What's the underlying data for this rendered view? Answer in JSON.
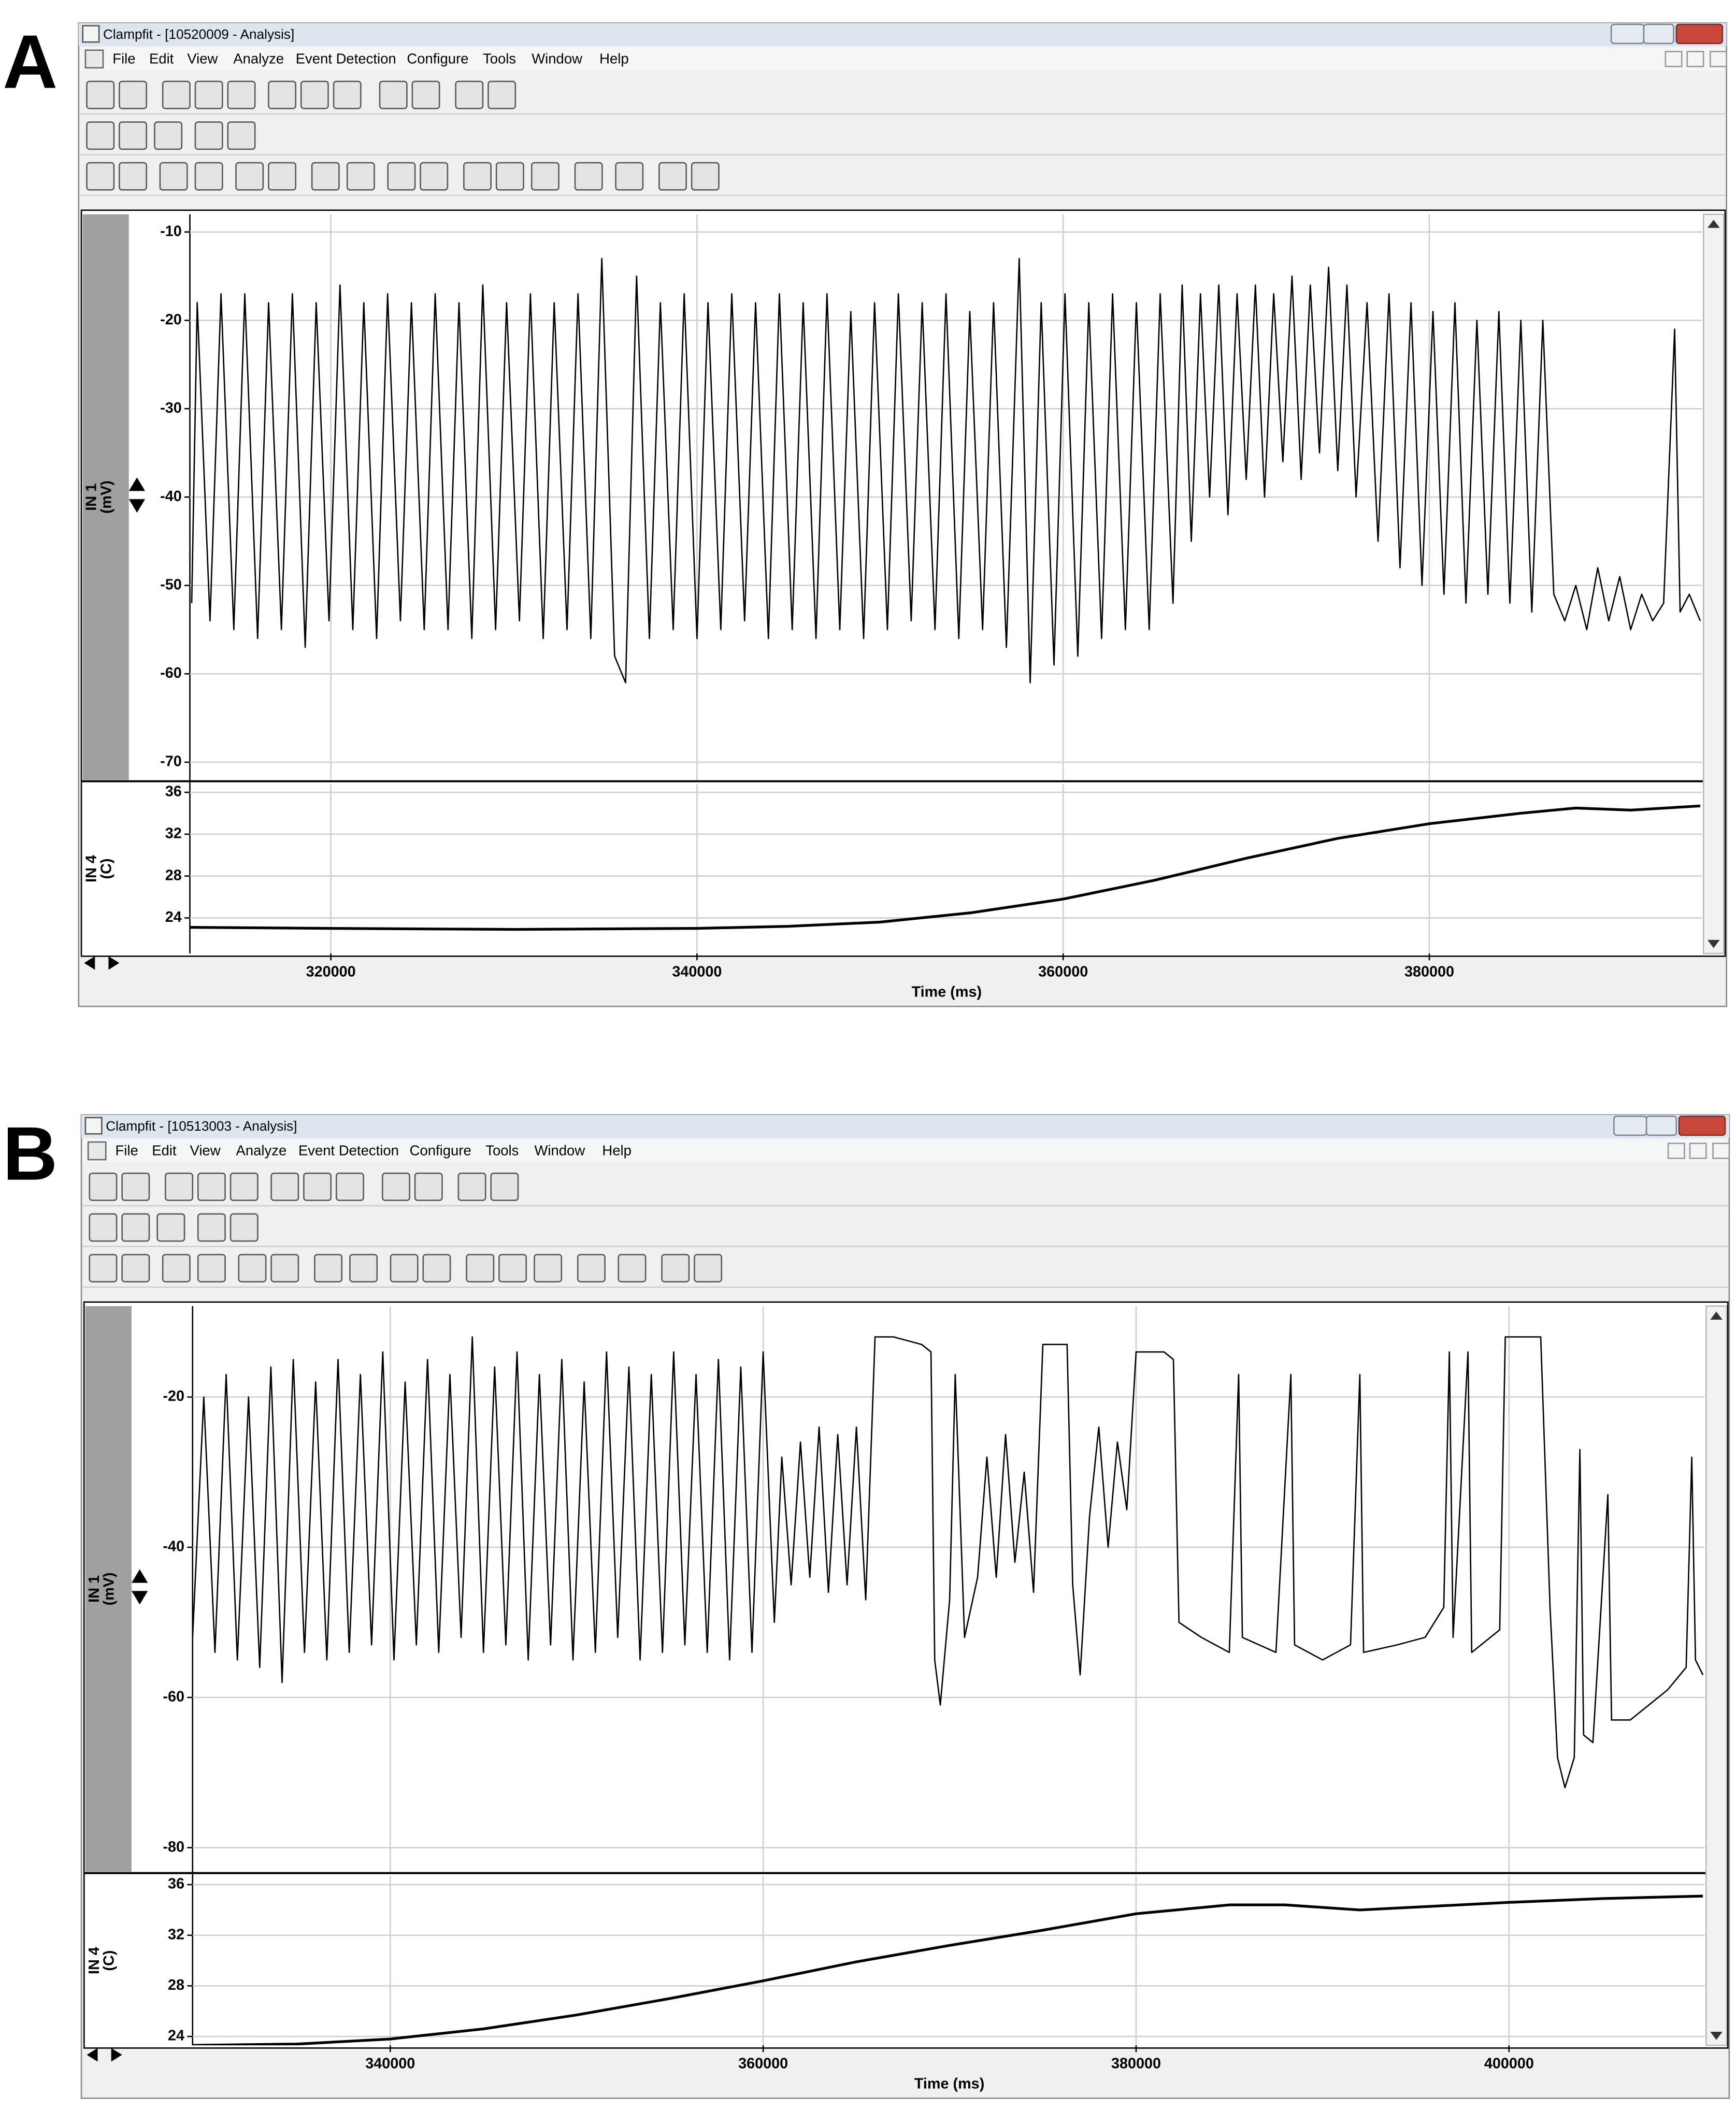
{
  "panels": [
    {
      "label": "A",
      "window_title": "Clampfit - [10520009 - Analysis]",
      "menu": [
        "File",
        "Edit",
        "View",
        "Analyze",
        "Event Detection",
        "Configure",
        "Tools",
        "Window",
        "Help"
      ],
      "x_label": "Time (ms)",
      "xlim": [
        312300,
        394900
      ],
      "xticks": [
        320000,
        340000,
        360000,
        380000
      ],
      "grid": true,
      "charts": [
        {
          "type": "line",
          "y_label": [
            "IN 1",
            "(mV)"
          ],
          "ylim": [
            -72,
            -8
          ],
          "yticks": [
            -70,
            -60,
            -50,
            -40,
            -30,
            -20,
            -10
          ],
          "color": "#000000",
          "x": [
            312400,
            312700,
            313400,
            314000,
            314700,
            315300,
            316000,
            316600,
            317300,
            317900,
            318600,
            319200,
            319900,
            320500,
            321200,
            321800,
            322500,
            323100,
            323800,
            324400,
            325100,
            325700,
            326400,
            327000,
            327700,
            328300,
            329000,
            329600,
            330300,
            330900,
            331600,
            332200,
            332900,
            333500,
            334200,
            334800,
            335500,
            336100,
            336700,
            337400,
            338000,
            338700,
            339300,
            340000,
            340600,
            341300,
            341900,
            342600,
            343200,
            343900,
            344500,
            345200,
            345800,
            346500,
            347100,
            347800,
            348400,
            349100,
            349700,
            350400,
            351000,
            351700,
            352300,
            353000,
            353600,
            354300,
            354900,
            355600,
            356200,
            356900,
            357600,
            358200,
            358800,
            359500,
            360100,
            360800,
            361400,
            362100,
            362700,
            363400,
            364000,
            364700,
            365300,
            366000,
            366500,
            367000,
            367500,
            368000,
            368500,
            369000,
            369500,
            370000,
            370500,
            371000,
            371500,
            372000,
            372500,
            373000,
            373500,
            374000,
            374500,
            375000,
            375500,
            376000,
            376600,
            377200,
            377800,
            378400,
            379000,
            379600,
            380200,
            380800,
            381400,
            382000,
            382600,
            383200,
            383800,
            384400,
            385000,
            385600,
            386200,
            386800,
            387400,
            388000,
            388600,
            389200,
            389800,
            390400,
            391000,
            391600,
            392200,
            392800,
            393400,
            393700,
            394200,
            394800
          ],
          "values": [
            -52,
            -18,
            -54,
            -17,
            -55,
            -17,
            -56,
            -18,
            -55,
            -17,
            -57,
            -18,
            -54,
            -16,
            -55,
            -18,
            -56,
            -17,
            -54,
            -18,
            -55,
            -17,
            -55,
            -18,
            -56,
            -16,
            -55,
            -18,
            -54,
            -17,
            -56,
            -18,
            -55,
            -17,
            -56,
            -13,
            -58,
            -61,
            -15,
            -56,
            -18,
            -55,
            -17,
            -56,
            -18,
            -55,
            -17,
            -54,
            -18,
            -56,
            -17,
            -55,
            -18,
            -56,
            -17,
            -55,
            -19,
            -56,
            -18,
            -55,
            -17,
            -54,
            -18,
            -55,
            -17,
            -56,
            -19,
            -55,
            -18,
            -57,
            -13,
            -61,
            -18,
            -59,
            -17,
            -58,
            -18,
            -56,
            -17,
            -55,
            -18,
            -55,
            -17,
            -52,
            -16,
            -45,
            -17,
            -40,
            -16,
            -42,
            -17,
            -38,
            -16,
            -40,
            -17,
            -36,
            -15,
            -38,
            -16,
            -35,
            -14,
            -37,
            -16,
            -40,
            -18,
            -45,
            -17,
            -48,
            -18,
            -50,
            -19,
            -51,
            -18,
            -52,
            -20,
            -51,
            -19,
            -52,
            -20,
            -53,
            -20,
            -51,
            -54,
            -50,
            -55,
            -48,
            -54,
            -49,
            -55,
            -51,
            -54,
            -52,
            -21,
            -53,
            -51,
            -54
          ]
        },
        {
          "type": "line",
          "y_label": [
            "IN 4",
            "(C)"
          ],
          "ylim": [
            20.6,
            36.8
          ],
          "yticks": [
            24,
            28,
            32,
            36
          ],
          "color": "#000000",
          "x": [
            312300,
            320000,
            330000,
            340000,
            345000,
            350000,
            355000,
            360000,
            365000,
            370000,
            375000,
            380000,
            385000,
            388000,
            391000,
            394800
          ],
          "values": [
            23.1,
            23.0,
            22.9,
            23.0,
            23.2,
            23.6,
            24.5,
            25.8,
            27.6,
            29.7,
            31.6,
            33.0,
            34.0,
            34.5,
            34.3,
            34.7
          ]
        }
      ]
    },
    {
      "label": "B",
      "window_title": "Clampfit - [10513003 - Analysis]",
      "menu": [
        "File",
        "Edit",
        "View",
        "Analyze",
        "Event Detection",
        "Configure",
        "Tools",
        "Window",
        "Help"
      ],
      "x_label": "Time (ms)",
      "xlim": [
        329400,
        410500
      ],
      "xticks": [
        340000,
        360000,
        380000,
        400000
      ],
      "grid": true,
      "charts": [
        {
          "type": "line",
          "y_label": [
            "IN 1",
            "(mV)"
          ],
          "ylim": [
            -83.2,
            -7.9
          ],
          "yticks": [
            -80,
            -60,
            -40,
            -20
          ],
          "color": "#000000",
          "x": [
            329400,
            330000,
            330600,
            331200,
            331800,
            332400,
            333000,
            333600,
            334200,
            334800,
            335400,
            336000,
            336600,
            337200,
            337800,
            338400,
            339000,
            339600,
            340200,
            340800,
            341400,
            342000,
            342600,
            343200,
            343800,
            344400,
            345000,
            345600,
            346200,
            346800,
            347400,
            348000,
            348600,
            349200,
            349800,
            350400,
            351000,
            351600,
            352200,
            352800,
            353400,
            354000,
            354600,
            355200,
            355800,
            356400,
            357000,
            357600,
            358200,
            358800,
            359400,
            360000,
            360600,
            361000,
            361500,
            362000,
            362500,
            363000,
            363500,
            364000,
            364500,
            365000,
            365500,
            366000,
            367000,
            368500,
            369000,
            369200,
            369500,
            370000,
            370300,
            370800,
            371500,
            372000,
            372500,
            373000,
            373500,
            374000,
            374500,
            375000,
            376300,
            376600,
            377000,
            377500,
            378000,
            378500,
            379000,
            379500,
            380000,
            381500,
            382000,
            382300,
            383500,
            385000,
            385500,
            385700,
            387500,
            388300,
            388500,
            390000,
            391500,
            392000,
            392200,
            394000,
            395500,
            396500,
            396800,
            397000,
            397800,
            398000,
            399500,
            399800,
            401700,
            402200,
            402600,
            403000,
            403500,
            403800,
            404000,
            404500,
            405300,
            405500,
            406500,
            407500,
            408500,
            409500,
            409800,
            410000,
            410400
          ],
          "values": [
            -52,
            -20,
            -54,
            -17,
            -55,
            -20,
            -56,
            -16,
            -58,
            -15,
            -54,
            -18,
            -55,
            -15,
            -54,
            -17,
            -53,
            -14,
            -55,
            -18,
            -53,
            -15,
            -54,
            -17,
            -52,
            -12,
            -54,
            -16,
            -53,
            -14,
            -55,
            -17,
            -53,
            -15,
            -55,
            -18,
            -54,
            -14,
            -52,
            -16,
            -55,
            -17,
            -54,
            -14,
            -53,
            -17,
            -54,
            -15,
            -55,
            -16,
            -54,
            -14,
            -50,
            -28,
            -45,
            -26,
            -44,
            -24,
            -46,
            -25,
            -45,
            -24,
            -47,
            -12,
            -12,
            -13,
            -14,
            -55,
            -61,
            -47,
            -17,
            -52,
            -44,
            -28,
            -44,
            -25,
            -42,
            -30,
            -46,
            -13,
            -13,
            -45,
            -57,
            -36,
            -24,
            -40,
            -26,
            -35,
            -14,
            -14,
            -15,
            -50,
            -52,
            -54,
            -17,
            -52,
            -54,
            -17,
            -53,
            -55,
            -53,
            -17,
            -54,
            -53,
            -52,
            -48,
            -14,
            -52,
            -14,
            -54,
            -51,
            -12,
            -12,
            -48,
            -68,
            -72,
            -68,
            -27,
            -65,
            -66,
            -33,
            -63,
            -63,
            -61,
            -59,
            -56,
            -28,
            -55,
            -57
          ]
        },
        {
          "type": "line",
          "y_label": [
            "IN 4",
            "(C)"
          ],
          "ylim": [
            23.3,
            36.7
          ],
          "yticks": [
            24,
            28,
            32,
            36
          ],
          "color": "#000000",
          "x": [
            329400,
            335000,
            340000,
            345000,
            350000,
            355000,
            360000,
            365000,
            370000,
            375000,
            380000,
            385000,
            388000,
            392000,
            396000,
            400000,
            405000,
            410400
          ],
          "values": [
            23.3,
            23.4,
            23.8,
            24.6,
            25.7,
            27.0,
            28.4,
            29.9,
            31.2,
            32.4,
            33.7,
            34.4,
            34.4,
            34.0,
            34.3,
            34.6,
            34.9,
            35.1
          ]
        }
      ]
    }
  ]
}
